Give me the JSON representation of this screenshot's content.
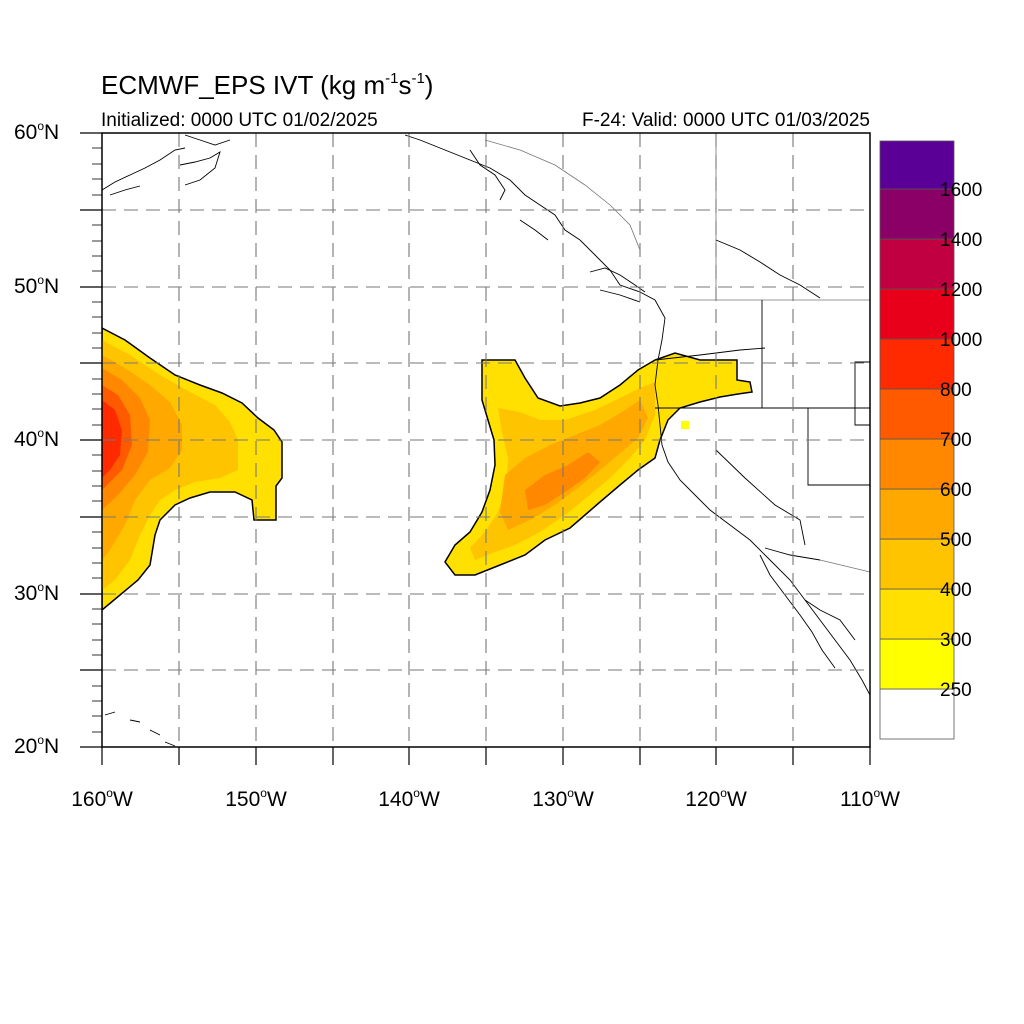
{
  "title": {
    "prefix": "ECMWF_EPS IVT (kg m",
    "exp1": "-1",
    "mid": "s",
    "exp2": "-1",
    "suffix": ")"
  },
  "subtitle_left": "Initialized: 0000 UTC 01/02/2025",
  "subtitle_right": "F-24: Valid: 0000 UTC 01/03/2025",
  "lat_labels": [
    {
      "value": "60",
      "hemi": "N"
    },
    {
      "value": "50",
      "hemi": "N"
    },
    {
      "value": "40",
      "hemi": "N"
    },
    {
      "value": "30",
      "hemi": "N"
    },
    {
      "value": "20",
      "hemi": "N"
    }
  ],
  "lon_labels": [
    {
      "value": "160",
      "hemi": "W"
    },
    {
      "value": "150",
      "hemi": "W"
    },
    {
      "value": "140",
      "hemi": "W"
    },
    {
      "value": "130",
      "hemi": "W"
    },
    {
      "value": "120",
      "hemi": "W"
    },
    {
      "value": "110",
      "hemi": "W"
    }
  ],
  "colorbar": {
    "labels": [
      "250",
      "300",
      "400",
      "500",
      "600",
      "700",
      "800",
      "1000",
      "1200",
      "1400",
      "1600"
    ],
    "colors": [
      "#ffffff",
      "#ffff00",
      "#ffe000",
      "#ffc400",
      "#ffa800",
      "#ff8800",
      "#ff5a00",
      "#ff2a00",
      "#e8001a",
      "#c00040",
      "#8a0066",
      "#5a0096"
    ]
  },
  "map_extent": {
    "lon_min": -160,
    "lon_max": -110,
    "lat_min": 20,
    "lat_max": 60
  }
}
